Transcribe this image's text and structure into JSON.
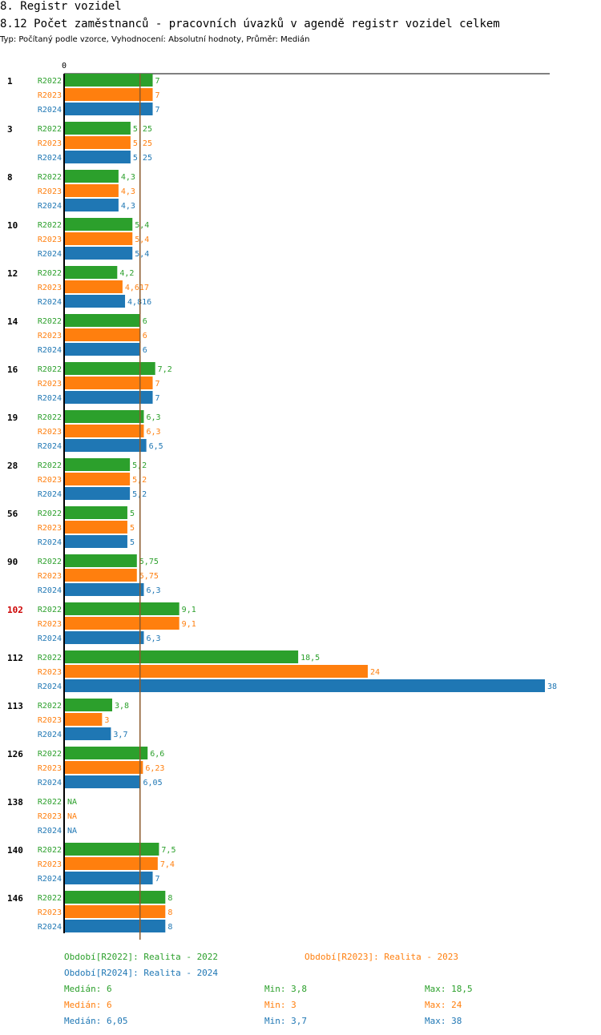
{
  "header": {
    "title": "8. Registr vozidel",
    "subtitle": "8.12 Počet zaměstnanců - pracovních úvazků v agendě registr vozidel celkem",
    "type_line": "Typ: Počítaný podle vzorce, Vyhodnocení: Absolutní hodnoty, Průměr: Medián"
  },
  "colors": {
    "R2022": "#2ca02c",
    "R2023": "#ff7f0e",
    "R2024": "#1f77b4",
    "highlight": "#cc0000",
    "median_line": "#8b5a2b"
  },
  "chart_data": {
    "type": "bar",
    "orientation": "horizontal",
    "axis_zero_label": "0",
    "xlim": [
      0,
      38
    ],
    "median_reference": 6,
    "series_names": [
      "R2022",
      "R2023",
      "R2024"
    ],
    "groups": [
      {
        "id": "1",
        "highlight": false,
        "values": [
          7,
          7,
          7
        ],
        "labels": [
          "7",
          "7",
          "7"
        ]
      },
      {
        "id": "3",
        "highlight": false,
        "values": [
          5.25,
          5.25,
          5.25
        ],
        "labels": [
          "5,25",
          "5,25",
          "5,25"
        ]
      },
      {
        "id": "8",
        "highlight": false,
        "values": [
          4.3,
          4.3,
          4.3
        ],
        "labels": [
          "4,3",
          "4,3",
          "4,3"
        ]
      },
      {
        "id": "10",
        "highlight": false,
        "values": [
          5.4,
          5.4,
          5.4
        ],
        "labels": [
          "5,4",
          "5,4",
          "5,4"
        ]
      },
      {
        "id": "12",
        "highlight": false,
        "values": [
          4.2,
          4.617,
          4.816
        ],
        "labels": [
          "4,2",
          "4,617",
          "4,816"
        ]
      },
      {
        "id": "14",
        "highlight": false,
        "values": [
          6,
          6,
          6
        ],
        "labels": [
          "6",
          "6",
          "6"
        ]
      },
      {
        "id": "16",
        "highlight": false,
        "values": [
          7.2,
          7,
          7
        ],
        "labels": [
          "7,2",
          "7",
          "7"
        ]
      },
      {
        "id": "19",
        "highlight": false,
        "values": [
          6.3,
          6.3,
          6.5
        ],
        "labels": [
          "6,3",
          "6,3",
          "6,5"
        ]
      },
      {
        "id": "28",
        "highlight": false,
        "values": [
          5.2,
          5.2,
          5.2
        ],
        "labels": [
          "5,2",
          "5,2",
          "5,2"
        ]
      },
      {
        "id": "56",
        "highlight": false,
        "values": [
          5,
          5,
          5
        ],
        "labels": [
          "5",
          "5",
          "5"
        ]
      },
      {
        "id": "90",
        "highlight": false,
        "values": [
          5.75,
          5.75,
          6.3
        ],
        "labels": [
          "5,75",
          "5,75",
          "6,3"
        ]
      },
      {
        "id": "102",
        "highlight": true,
        "values": [
          9.1,
          9.1,
          6.3
        ],
        "labels": [
          "9,1",
          "9,1",
          "6,3"
        ]
      },
      {
        "id": "112",
        "highlight": false,
        "values": [
          18.5,
          24,
          38
        ],
        "labels": [
          "18,5",
          "24",
          "38"
        ]
      },
      {
        "id": "113",
        "highlight": false,
        "values": [
          3.8,
          3,
          3.7
        ],
        "labels": [
          "3,8",
          "3",
          "3,7"
        ]
      },
      {
        "id": "126",
        "highlight": false,
        "values": [
          6.6,
          6.23,
          6.05
        ],
        "labels": [
          "6,6",
          "6,23",
          "6,05"
        ]
      },
      {
        "id": "138",
        "highlight": false,
        "values": [
          null,
          null,
          null
        ],
        "labels": [
          "NA",
          "NA",
          "NA"
        ]
      },
      {
        "id": "140",
        "highlight": false,
        "values": [
          7.5,
          7.4,
          7
        ],
        "labels": [
          "7,5",
          "7,4",
          "7"
        ]
      },
      {
        "id": "146",
        "highlight": false,
        "values": [
          8,
          8,
          8
        ],
        "labels": [
          "8",
          "8",
          "8"
        ]
      }
    ]
  },
  "footer": {
    "periods": [
      "Období[R2022]: Realita - 2022",
      "Období[R2023]: Realita - 2023",
      "Období[R2024]: Realita - 2024"
    ],
    "stats": [
      {
        "median": "Medián: 6",
        "min": "Min: 3,8",
        "max": "Max: 18,5"
      },
      {
        "median": "Medián: 6",
        "min": "Min: 3",
        "max": "Max: 24"
      },
      {
        "median": "Medián: 6,05",
        "min": "Min: 3,7",
        "max": "Max: 38"
      }
    ]
  }
}
